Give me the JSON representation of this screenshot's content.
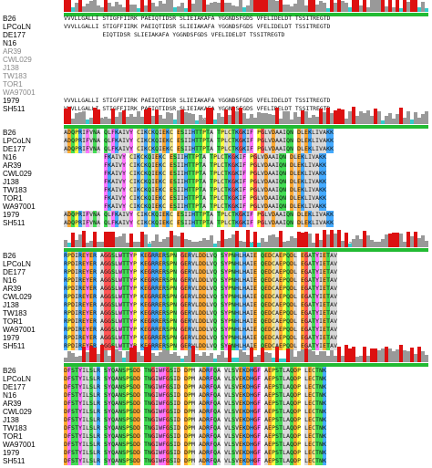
{
  "colors": {
    "hydrophobic": "#d9d9d9",
    "aromatic": "#ff77ff",
    "positive": "#44aaff",
    "negative": "#ffaa33",
    "polar": "#44dd55",
    "glycine": "#ff5555",
    "proline": "#ffff44",
    "cysteine": "#f0e68c",
    "histo_high": "#dd1111",
    "histo_mid": "#999999",
    "histo_cyan": "#33cccc",
    "base_green": "#22bb33",
    "base_yellow": "#dddd22"
  },
  "block1": {
    "names": [
      "B26",
      "LPCoLN",
      "DE177",
      "N16",
      "AR39",
      "CWL029",
      "J138",
      "TW183",
      "TOR1",
      "WA97001",
      "1979",
      "SH511"
    ],
    "grey": [
      false,
      false,
      false,
      false,
      true,
      true,
      true,
      true,
      true,
      true,
      false,
      false
    ],
    "rows": [
      "VVVLLGALLI STIGFFIIRK PAEIQTIDSR SLIEIAKAFA YGGNDSFGDS VFELIDELDT TSSITREGTD",
      "VVVLLGALLI STIGFFIIRK PAEIQTIDSR SLIEIAKAFA YGGNDSFGDS VFELIDELDT TSSITREGTD",
      "           EIQTIDSR SLIEIAKAFA YGGNDSFGDS VFELIDELDT TSSITREGTD",
      "",
      "",
      "",
      "",
      "",
      "",
      "",
      "VVVLLGALLI STIGFFIIRK PAEIQTIDSR SLIEIAKAFA YGGNDSFGDS VFELIDELDT TSSITREGTD",
      "VVVLLGALLI STIGFFIIRK PAEIQTIDSR SLIEIAKAFA YGGNDSFGDS VFELIDELDT TSSITREGTD"
    ]
  },
  "block2": {
    "ticks": [
      "80",
      "90",
      "100",
      "110",
      "120",
      "130",
      "140"
    ],
    "names": [
      "B26",
      "LPCoLN",
      "DE177",
      "N16",
      "AR39",
      "CWL029",
      "J138",
      "TW183",
      "TOR1",
      "WA97001",
      "1979",
      "SH511"
    ],
    "rows": [
      "ADQPRIFVNA QLFKAIVY CIKCKQIEKC ESIIHTTPTA TPLCTKGKIF PGLVDAAIQN DLEKLIVAKK",
      "ADQPRIFVNA QLFKAIVY CIKCKQIEKC ESIIHTTPTA TPLCTKGKIF PGLVDAAIQN DLEKLIVAKK",
      "ADQPRIFVNA QLFKAIVY CIKCKQIEKC ESIIHTTPTA TPLCTKGKIF PGLVDAAIQN DLEKLIVAKK",
      "           FKAIVY CIKCKQIEKC ESIIHTTPTA TPLCTKGKIF PGLVDAAIQN DLEKLIVAKK",
      "           FKAIVY CIKCKQIEKC ESIIHTTPTA TPLCTKGKIF PGLVDAAIQN DLEKLIVAKK",
      "           FKAIVY CIKCKQIEKC ESIIHTTPTA TPLCTKGKIF PGLVDAAIQN DLEKLIVAKK",
      "           FKAIVY CIKCKQIEKC ESIIHTTPTA TPLCTKGKIF PGLVDAAIQN DLEKLIVAKK",
      "           FKAIVY CIKCKQIEKC ESIIHTTPTA TPLCTKGKIF PGLVDAAIQN DLEKLIVAKK",
      "           FKAIVY CIKCKQIEKC ESIIHTTPTA TPLCTKGKIF PGLVDAAIQN DLEKLIVAKK",
      "           FKAIVY CIKCKQIEKC ESIIHTTPTA TPLCTKGKIF PGLVDAAIQN DLEKLIVAKK",
      "ADQPRIFVNA QLFKAIVY CIKCKQIEKC ESIIHTTPTA TPLCTKGKIF PGLVDAAIQN DLEKLIVAKK",
      "ADQPRIFVNA QLFKAIVY CIKCKQIEKC ESIIHTTPTA TPLCTKGKIF PGLVDAAIQN DLEKLIVAKK"
    ]
  },
  "block3": {
    "ticks": [
      "150",
      "160",
      "170",
      "180",
      "190",
      "200",
      "210"
    ],
    "names": [
      "B26",
      "LPCoLN",
      "DE177",
      "N16",
      "AR39",
      "CWL029",
      "J138",
      "TW183",
      "TOR1",
      "WA97001",
      "1979",
      "SH511"
    ],
    "rows": [
      "RPDIREYER AGGSLWTTYP KEGRRERSPN GERVLDDLVQ SYPNHLHAIE QEDCAEPQDL EGATYIETAV",
      "RPDIREYER AGGSLWTTYP KEGRRERSPN GERVLDDLVQ SYPNHLHAIE QEDCAEPQDL EGATYIETAV",
      "RPDIREYER AGGSLWTTYP KEGRRERSPN GERVLDDLVQ SYPNHLHAIE QEDCAEPQDL EGATYIETAV",
      "RPDIREYER AGGSLWTTYP KEGRRERSPN GERVLDDLVQ SYPNHLHAIE QEDCAEPQDL EGATYIETAV",
      "RPDIREYER AGGSLWTTYP KEGRRERSPN GERVLDDLVQ SYPNHLHAIE QEDCAEPQDL EGATYIETAV",
      "RPDIREYER AGGSLWTTYP KEGRRERSPN GERVLDDLVQ SYPNHLHAIE QEDCAEPQDL EGATYIETAV",
      "RPDIREYER AGGSLWTTYP KEGRRERSPN GERVLDDLVQ SYPNHLHAIE QEDCAEPQDL EGATYIETAV",
      "RPDIREYER AGGSLWTTYP KEGRRERSPN GERVLDDLVQ SYPNHLHAIE QEDCAEPQDL EGATYIETAV",
      "RPDIREYER AGGSLWTTYP KEGRRERSPN GERVLDDLVQ SYPNHLHAIE QEDCAEPQDL EGATYIETAV",
      "RPDIREYER AGGSLWTTYP KEGRRERSPN GERVLDDLVQ SYPNHLHAIE QEDCAEPQDL EGATYIETAV",
      "RPDIREYER AGGSLWTTYP KEGRRERSPN GERVLDDLVQ SYPNHLHAIE QEDCAEPQDL EGATYIETAV",
      "RPDIREYER AGGSLWTTYP KEGRRERSPN GERVLDDLVQ SYPNHLHAIE QEDCAEPQDL EGATYIETAV"
    ]
  },
  "block4": {
    "ticks": [
      "220",
      "230",
      "240",
      "250",
      "260",
      "270"
    ],
    "names": [
      "B26",
      "LPCoLN",
      "DE177",
      "N16",
      "AR39",
      "CWL029",
      "J138",
      "TW183",
      "TOR1",
      "WA97001",
      "1979",
      "SH511"
    ],
    "rows": [
      "DFSTYILSLR SYQANSPSDD TNGIWFGSID DPM ADRFQA VLSVEKDHGF AEPSTLAQDP LECTNK",
      "DFSTYILSLR SYQANSPSDD TNGIWFGSID DPM ADRFQA VLSVEKDHGF AEPSTLAQDP LECTNK",
      "DFSTYILSLR SYQANSPSDD TNGIWFGSID DPM ADRFQA VLSVEKDHGF AEPSTLAQDP LECTNK",
      "DFSTYILSLR SYQANSPSDD TNGIWFGSID DPM ADRFQA VLSVEKDHGF AEPSTLAQDP LECTNK",
      "DFSTYILSLR SYQANSPSDD TNGIWFGSID DPM ADRFQA VLSVEKDHGF AEPSTLAQDP LECTNK",
      "DFSTYILSLR SYQANSPSDD TNGIWFGSID DPM ADRFQA VLSVEKDHGF AEPSTLAQDP LECTNK",
      "DFSTYILSLR SYQANSPSDD TNGIWFGSID DPM ADRFQA VLSVEKDHGF AEPSTLAQDP LECTNK",
      "DFSTYILSLR SYQANSPSDD TNGIWFGSID DPM ADRFQA VLSVEKDHGF AEPSTLAQDP LECTNK",
      "DFSTYILSLR SYQANSPSDD TNGIWFGSID DPM ADRFQA VLSVEKDHGF AEPSTLAQDP LECTNK",
      "DFSTYILSLR SYQANSPSDD TNGIWFGSID DPM ADRFQA VLSVEKDHGF AEPSTLAQDP LECTNK",
      "DFSTYILSLR SYQANSPSDD TNGIWFGSID DPM ADRFQA VLSVEKDHGF AEPSTLAQDP LECTNK",
      "DFSTYILSLR SYQANSPSDD TNGIWFGSID DPM ADRFQA VLSVEKDHGF AEPSTLAQDP LECTNK"
    ]
  }
}
